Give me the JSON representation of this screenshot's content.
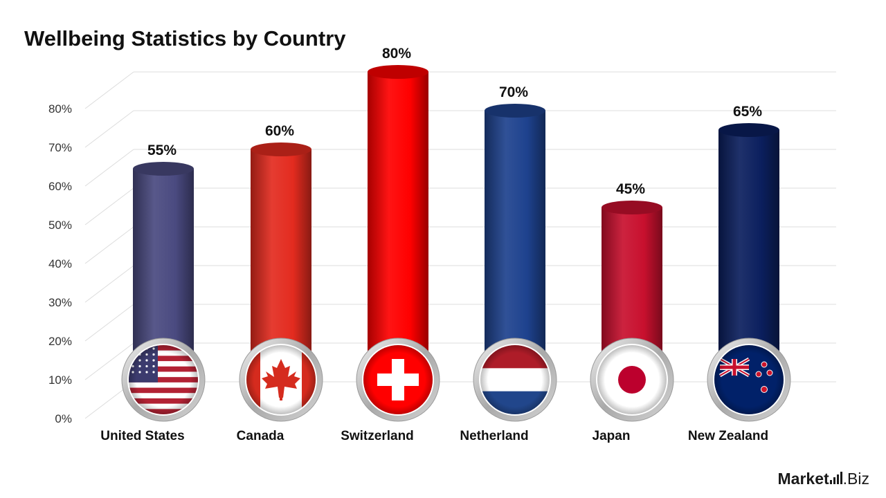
{
  "title": "Wellbeing Statistics by Country",
  "brand": {
    "name_main": "Market",
    "name_suffix": ".Biz"
  },
  "chart_data": {
    "type": "bar",
    "title": "Wellbeing Statistics by Country",
    "xlabel": "",
    "ylabel": "",
    "ylim": [
      0,
      80
    ],
    "yticks": [
      "0%",
      "10%",
      "20%",
      "30%",
      "40%",
      "50%",
      "60%",
      "70%",
      "80%"
    ],
    "grid": true,
    "legend": "none",
    "categories": [
      "United States",
      "Canada",
      "Switzerland",
      "Netherland",
      "Japan",
      "New Zealand"
    ],
    "values": [
      55,
      60,
      80,
      70,
      45,
      65
    ],
    "data_labels": [
      "55%",
      "60%",
      "80%",
      "70%",
      "45%",
      "65%"
    ],
    "colors": [
      "#4a4a80",
      "#e32b1f",
      "#ff0000",
      "#1e428e",
      "#c8102e",
      "#0b1f5e"
    ],
    "flags": [
      "us-flag-icon",
      "canada-flag-icon",
      "switzerland-flag-icon",
      "netherlands-flag-icon",
      "japan-flag-icon",
      "new-zealand-flag-icon"
    ]
  }
}
